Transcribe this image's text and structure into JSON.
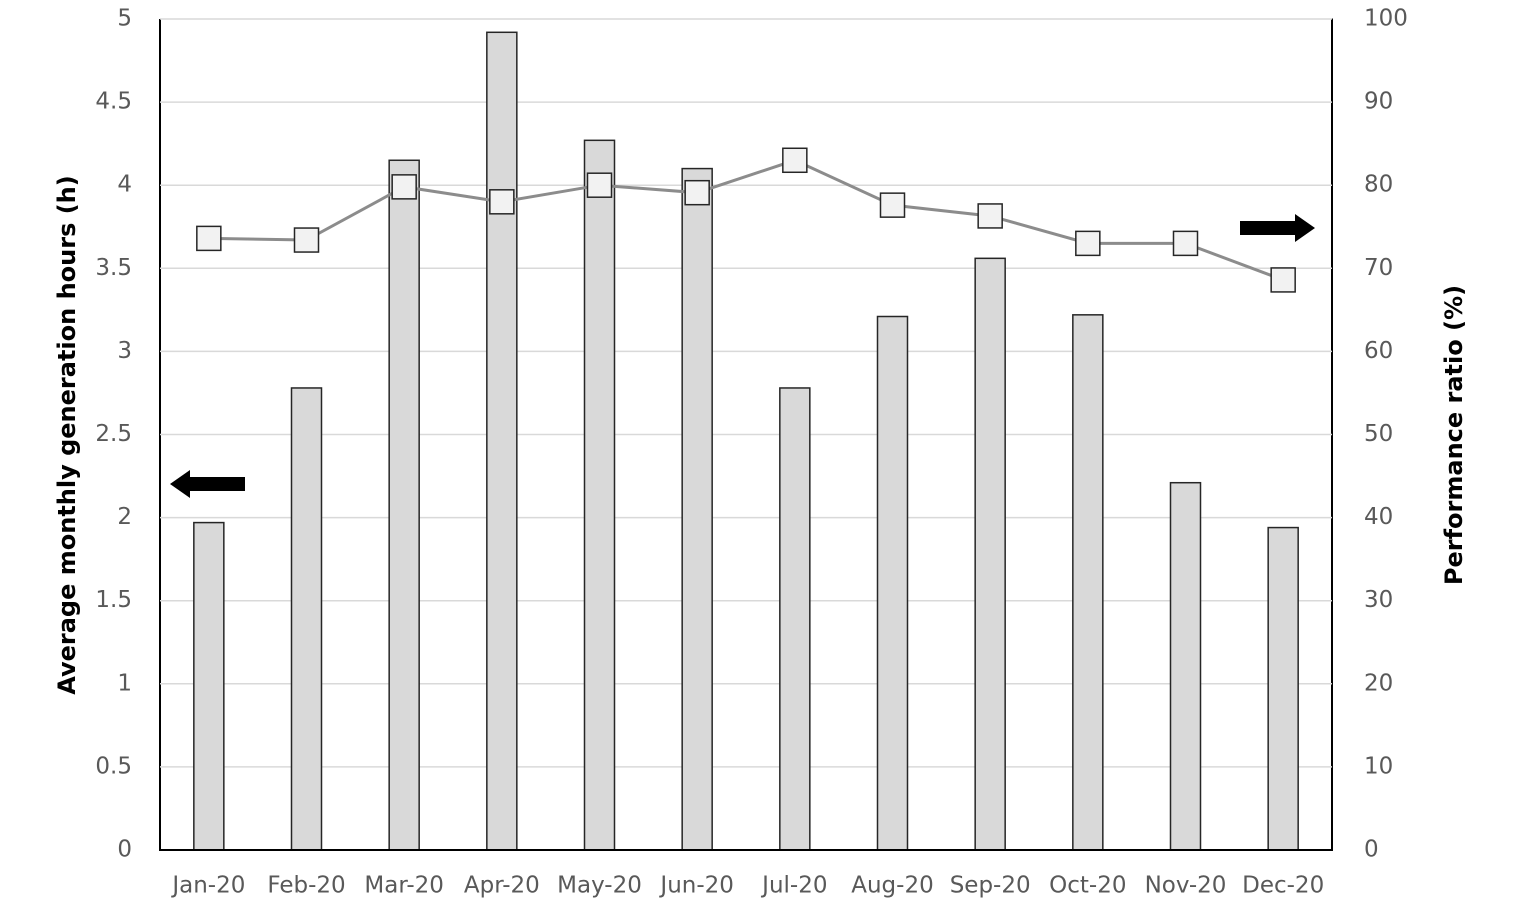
{
  "chart_data": {
    "type": "bar",
    "y_label": "Average monthly generation hours (h)",
    "y2_label": "Performance ratio (%)",
    "categories": [
      "Jan-20",
      "Feb-20",
      "Mar-20",
      "Apr-20",
      "May-20",
      "Jun-20",
      "Jul-20",
      "Aug-20",
      "Sep-20",
      "Oct-20",
      "Nov-20",
      "Dec-20"
    ],
    "series": [
      {
        "type": "bar",
        "color": "#d9d9d9",
        "values": [
          1.97,
          2.78,
          4.15,
          4.92,
          4.27,
          4.1,
          2.78,
          3.21,
          3.56,
          3.22,
          2.21,
          1.94
        ]
      },
      {
        "type": "line",
        "axis": "y2",
        "color": "#8c8c8c",
        "values": [
          73.6,
          73.4,
          79.8,
          78.0,
          80.0,
          79.1,
          83.0,
          77.6,
          76.3,
          73.0,
          73.0,
          68.6
        ]
      }
    ],
    "ylim": [
      0,
      5
    ],
    "yticks": [
      0,
      0.5,
      1,
      1.5,
      2,
      2.5,
      3,
      3.5,
      4,
      4.5,
      5
    ],
    "y2lim": [
      0,
      100
    ],
    "y2ticks": [
      0,
      10,
      20,
      30,
      40,
      50,
      60,
      70,
      80,
      90,
      100
    ],
    "grid": true
  }
}
